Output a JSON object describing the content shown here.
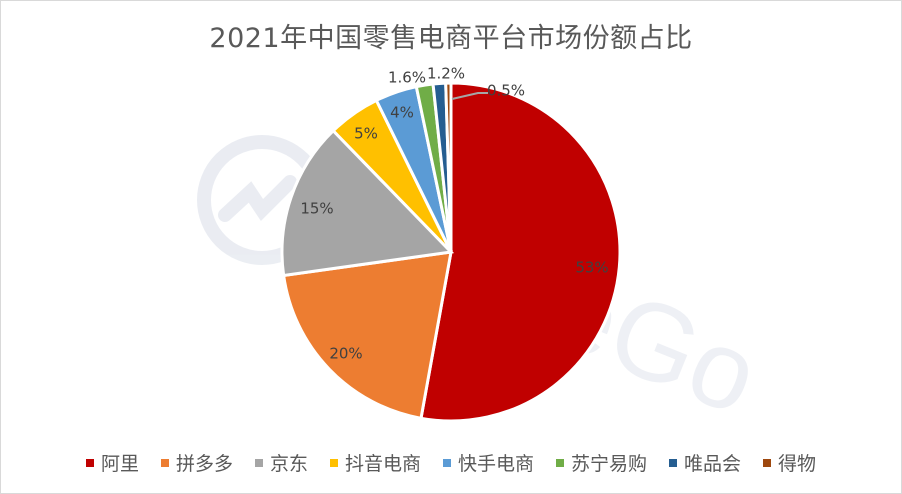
{
  "chart_data": {
    "type": "pie",
    "title": "2021年中国零售电商平台市场份额占比",
    "categories": [
      "阿里",
      "拼多多",
      "京东",
      "抖音电商",
      "快手电商",
      "苏宁易购",
      "唯品会",
      "得物"
    ],
    "values": [
      53,
      20,
      15,
      5,
      4,
      1.6,
      1.2,
      0.5
    ],
    "data_labels": [
      "53%",
      "20%",
      "15%",
      "5%",
      "4%",
      "1.6%",
      "1.2%",
      "0.5%"
    ],
    "colors": [
      "#C00000",
      "#ED7D31",
      "#A5A5A5",
      "#FFC000",
      "#5B9BD5",
      "#70AD47",
      "#255E91",
      "#9E480E"
    ],
    "start_angle": "12 o'clock",
    "direction": "clockwise",
    "legend_position": "bottom",
    "watermark": "TradeGo"
  },
  "title": "2021年中国零售电商平台市场份额占比",
  "legend": [
    {
      "label": "阿里",
      "color": "#C00000"
    },
    {
      "label": "拼多多",
      "color": "#ED7D31"
    },
    {
      "label": "京东",
      "color": "#A5A5A5"
    },
    {
      "label": "抖音电商",
      "color": "#FFC000"
    },
    {
      "label": "快手电商",
      "color": "#5B9BD5"
    },
    {
      "label": "苏宁易购",
      "color": "#70AD47"
    },
    {
      "label": "唯品会",
      "color": "#255E91"
    },
    {
      "label": "得物",
      "color": "#9E480E"
    }
  ]
}
